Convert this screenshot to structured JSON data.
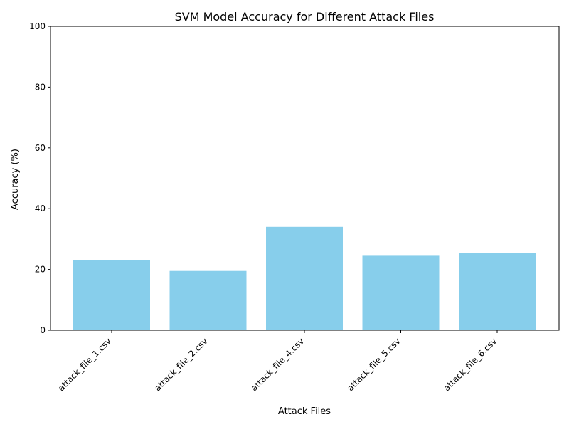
{
  "chart_data": {
    "type": "bar",
    "title": "SVM Model Accuracy for Different Attack Files",
    "xlabel": "Attack Files",
    "ylabel": "Accuracy (%)",
    "categories": [
      "attack_file_1.csv",
      "attack_file_2.csv",
      "attack_file_4.csv",
      "attack_file_5.csv",
      "attack_file_6.csv"
    ],
    "values": [
      23.0,
      19.5,
      34.0,
      24.5,
      25.5
    ],
    "ylim": [
      0,
      100
    ],
    "yticks": [
      "0",
      "20",
      "40",
      "60",
      "80",
      "100"
    ],
    "grid": false,
    "legend": "none",
    "bar_color": "#87CEEB"
  }
}
